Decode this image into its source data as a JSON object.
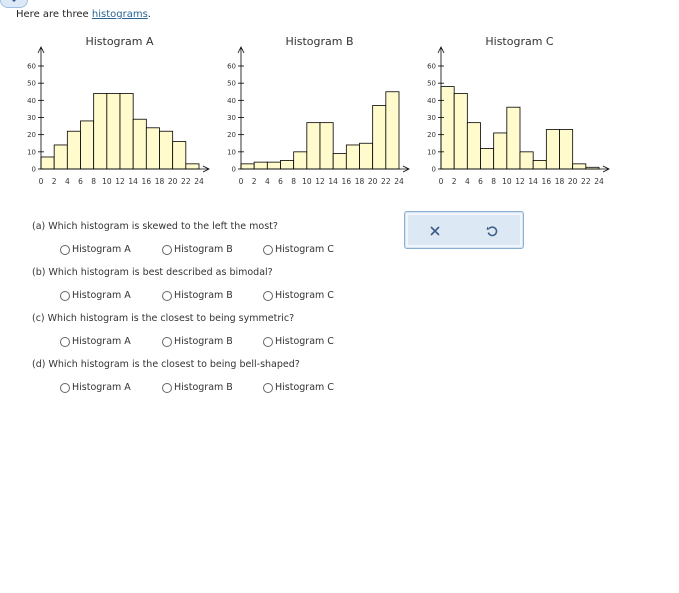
{
  "intro": {
    "prefix": "Here are three ",
    "link": "histograms",
    "suffix": "."
  },
  "colors": {
    "bar_fill": "#fffbcc",
    "bar_stroke": "#000000",
    "link": "#2a6496",
    "accent": "#8ab0d6"
  },
  "chart_data": [
    {
      "type": "bar",
      "title": "Histogram A",
      "bin_edges": [
        0,
        2,
        4,
        6,
        8,
        10,
        12,
        14,
        16,
        18,
        20,
        22,
        24
      ],
      "values": [
        7,
        14,
        22,
        28,
        44,
        44,
        44,
        29,
        24,
        22,
        16,
        3
      ],
      "x_ticks": [
        "0",
        "2",
        "4",
        "6",
        "8",
        "10",
        "12",
        "14",
        "16",
        "18",
        "20",
        "22",
        "24"
      ],
      "y_ticks": [
        "0",
        "10",
        "20",
        "30",
        "40",
        "50",
        "60"
      ],
      "ylim": [
        0,
        60
      ],
      "xlim": [
        0,
        24
      ]
    },
    {
      "type": "bar",
      "title": "Histogram B",
      "bin_edges": [
        0,
        2,
        4,
        6,
        8,
        10,
        12,
        14,
        16,
        18,
        20,
        22,
        24
      ],
      "values": [
        3,
        4,
        4,
        5,
        10,
        27,
        27,
        9,
        14,
        15,
        37,
        45
      ],
      "x_ticks": [
        "0",
        "2",
        "4",
        "6",
        "8",
        "10",
        "12",
        "14",
        "16",
        "18",
        "20",
        "22",
        "24"
      ],
      "y_ticks": [
        "0",
        "10",
        "20",
        "30",
        "40",
        "50",
        "60"
      ],
      "ylim": [
        0,
        60
      ],
      "xlim": [
        0,
        24
      ]
    },
    {
      "type": "bar",
      "title": "Histogram C",
      "bin_edges": [
        0,
        2,
        4,
        6,
        8,
        10,
        12,
        14,
        16,
        18,
        20,
        22,
        24
      ],
      "values": [
        48,
        44,
        27,
        12,
        21,
        36,
        10,
        5,
        23,
        23,
        3,
        1
      ],
      "x_ticks": [
        "0",
        "2",
        "4",
        "6",
        "8",
        "10",
        "12",
        "14",
        "16",
        "18",
        "20",
        "22",
        "24"
      ],
      "y_ticks": [
        "0",
        "10",
        "20",
        "30",
        "40",
        "50",
        "60"
      ],
      "ylim": [
        0,
        60
      ],
      "xlim": [
        0,
        24
      ]
    }
  ],
  "questions": [
    {
      "text": "(a) Which histogram is skewed to the left the most?",
      "options": [
        "Histogram A",
        "Histogram B",
        "Histogram C"
      ]
    },
    {
      "text": "(b) Which histogram is best described as bimodal?",
      "options": [
        "Histogram A",
        "Histogram B",
        "Histogram C"
      ]
    },
    {
      "text": "(c) Which histogram is the closest to being symmetric?",
      "options": [
        "Histogram A",
        "Histogram B",
        "Histogram C"
      ]
    },
    {
      "text": "(d) Which histogram is the closest to being bell-shaped?",
      "options": [
        "Histogram A",
        "Histogram B",
        "Histogram C"
      ]
    }
  ],
  "actions": {
    "clear_icon": "close-icon",
    "reset_icon": "undo-icon"
  }
}
